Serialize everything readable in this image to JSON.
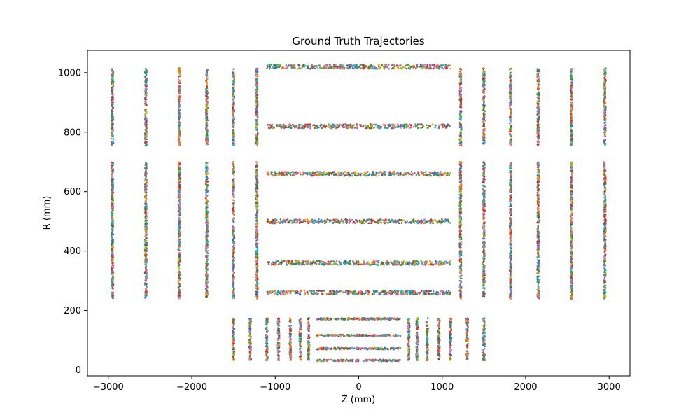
{
  "chart_data": {
    "type": "scatter",
    "title": "Ground Truth Trajectories",
    "xlabel": "Z (mm)",
    "ylabel": "R (mm)",
    "xlim": [
      -3250,
      3250
    ],
    "ylim": [
      -20,
      1075
    ],
    "xticks": [
      -3000,
      -2000,
      -1000,
      0,
      1000,
      2000,
      3000
    ],
    "xtick_labels": [
      "−3000",
      "−2000",
      "−1000",
      "0",
      "1000",
      "2000",
      "3000"
    ],
    "yticks": [
      0,
      200,
      400,
      600,
      800,
      1000
    ],
    "ytick_labels": [
      "0",
      "200",
      "400",
      "600",
      "800",
      "1000"
    ],
    "grid": false,
    "legend": "none",
    "palette": [
      "#1f77b4",
      "#ff7f0e",
      "#2ca02c",
      "#d62728",
      "#9467bd",
      "#8c564b",
      "#e377c2",
      "#7f7f7f",
      "#bcbd22",
      "#17becf"
    ],
    "barrel_layers": [
      {
        "r": 32,
        "z": [
          -500,
          500
        ]
      },
      {
        "r": 72,
        "z": [
          -500,
          500
        ]
      },
      {
        "r": 116,
        "z": [
          -500,
          500
        ]
      },
      {
        "r": 172,
        "z": [
          -500,
          500
        ]
      },
      {
        "r": 260,
        "z": [
          -1100,
          1100
        ]
      },
      {
        "r": 360,
        "z": [
          -1100,
          1100
        ]
      },
      {
        "r": 500,
        "z": [
          -1100,
          1100
        ]
      },
      {
        "r": 660,
        "z": [
          -1100,
          1100
        ]
      },
      {
        "r": 820,
        "z": [
          -1100,
          1100
        ]
      },
      {
        "r": 1020,
        "z": [
          -1100,
          1100
        ]
      }
    ],
    "endcap_disks": [
      {
        "z_abs": [
          600,
          700,
          820,
          960,
          1100,
          1300,
          1500
        ],
        "r": [
          32,
          175
        ]
      },
      {
        "z_abs": [
          1220,
          1500,
          1820,
          2150,
          2550,
          2950
        ],
        "r": [
          240,
          700
        ]
      },
      {
        "z_abs": [
          1220,
          1500,
          1820,
          2150,
          2550,
          2950
        ],
        "r": [
          755,
          1015
        ]
      }
    ]
  }
}
